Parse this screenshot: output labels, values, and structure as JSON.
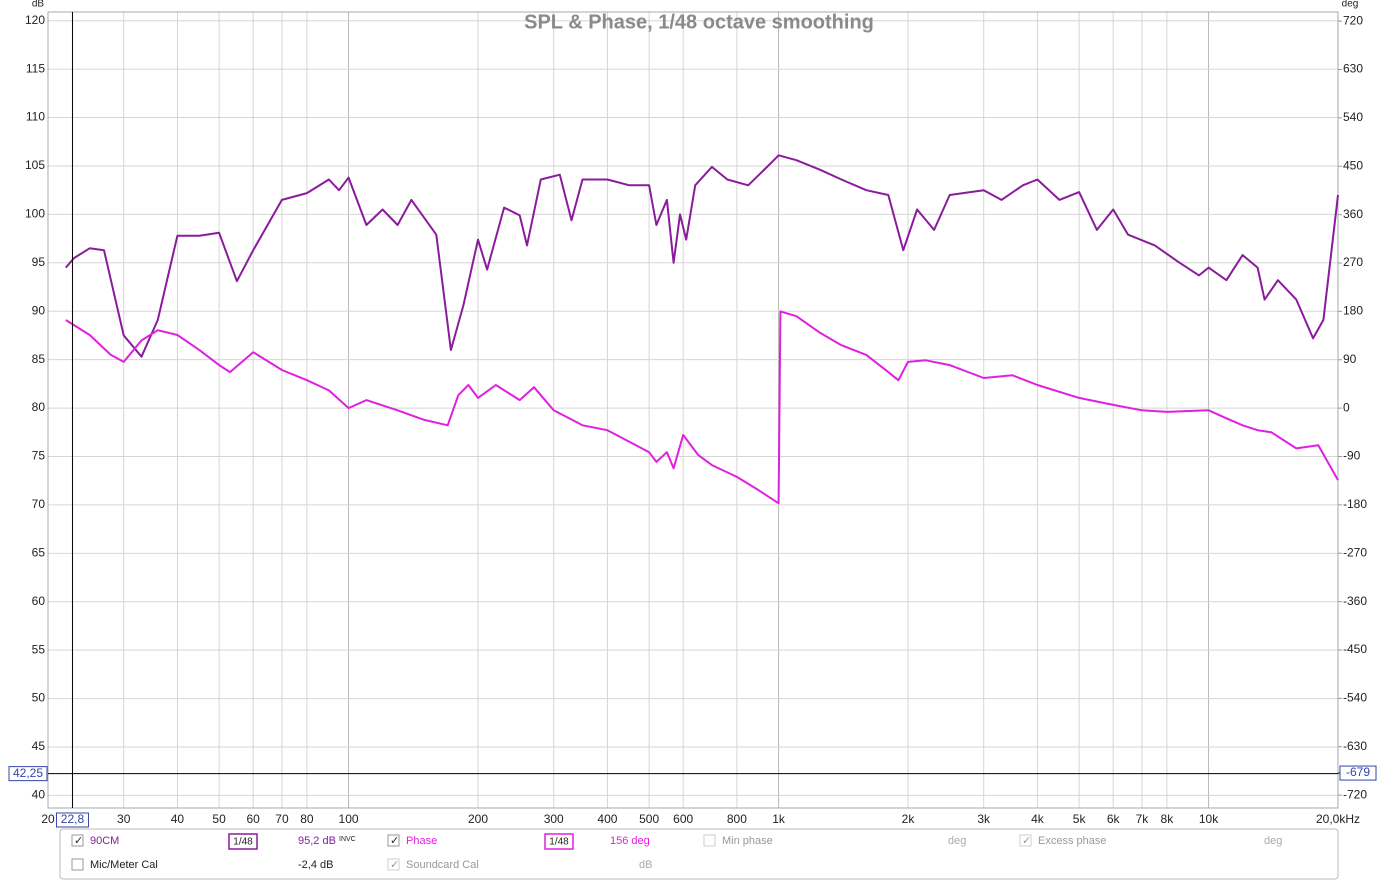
{
  "chart_data": {
    "type": "line",
    "title": "SPL & Phase, 1/48 octave smoothing",
    "y_label": "dB",
    "y2_label": "deg",
    "log_x": true,
    "grid": true,
    "xlim": [
      20,
      20000
    ],
    "xticks": [
      20,
      30,
      40,
      50,
      60,
      70,
      80,
      100,
      200,
      300,
      400,
      500,
      600,
      800,
      {
        "value": 1000,
        "label": "1k"
      },
      {
        "value": 2000,
        "label": "2k"
      },
      {
        "value": 3000,
        "label": "3k"
      },
      {
        "value": 4000,
        "label": "4k"
      },
      {
        "value": 5000,
        "label": "5k"
      },
      {
        "value": 6000,
        "label": "6k"
      },
      {
        "value": 7000,
        "label": "7k"
      },
      {
        "value": 8000,
        "label": "8k"
      },
      {
        "value": 10000,
        "label": "10k"
      },
      {
        "value": 20000,
        "label": "20,0kHz"
      }
    ],
    "ylim": [
      38.7,
      120.9
    ],
    "yticks": [
      40,
      45,
      50,
      55,
      60,
      65,
      70,
      75,
      80,
      85,
      90,
      95,
      100,
      105,
      110,
      115,
      120
    ],
    "y2lim": [
      -744,
      737
    ],
    "y2ticks": [
      -720,
      -630,
      -540,
      -450,
      -360,
      -270,
      -180,
      -90,
      0,
      90,
      180,
      270,
      360,
      450,
      540,
      630,
      720
    ],
    "cursor_x": {
      "value": 22.8,
      "label": "22,8"
    },
    "cursor_y": {
      "value": 42.25,
      "label": "42,25"
    },
    "cursor_y2": -679,
    "series": [
      {
        "name": "90CM",
        "color": "#8a1c9c",
        "smoothing": "1/48",
        "readout": "95,2 dB",
        "flag": "INVC",
        "x": [
          22,
          23,
          25,
          27,
          30,
          33,
          36,
          40,
          45,
          50,
          55,
          60,
          70,
          80,
          90,
          95,
          100,
          110,
          120,
          130,
          140,
          160,
          173,
          185,
          200,
          210,
          230,
          250,
          260,
          280,
          310,
          330,
          350,
          400,
          450,
          500,
          520,
          550,
          570,
          590,
          610,
          640,
          700,
          760,
          850,
          950,
          1000,
          1100,
          1250,
          1400,
          1600,
          1800,
          1950,
          2100,
          2300,
          2500,
          3000,
          3300,
          3700,
          4000,
          4500,
          5000,
          5500,
          6000,
          6500,
          7500,
          8500,
          9500,
          10000,
          11000,
          12000,
          13000,
          13500,
          14500,
          16000,
          17500,
          18500,
          20000
        ],
        "values": [
          94.5,
          95.5,
          96.5,
          96.3,
          87.5,
          85.3,
          89.1,
          97.8,
          97.8,
          98.1,
          93.1,
          96.3,
          101.5,
          102.2,
          103.6,
          102.5,
          103.8,
          98.9,
          100.5,
          98.9,
          101.5,
          97.9,
          86.0,
          90.6,
          97.4,
          94.3,
          100.7,
          99.9,
          96.8,
          103.6,
          104.1,
          99.4,
          103.6,
          103.6,
          103.0,
          103.0,
          98.9,
          101.5,
          95.0,
          100.0,
          97.4,
          103.0,
          104.9,
          103.6,
          103.0,
          105.1,
          106.1,
          105.6,
          104.6,
          103.6,
          102.5,
          102.0,
          96.3,
          100.5,
          98.4,
          102.0,
          102.5,
          101.5,
          103.0,
          103.6,
          101.5,
          102.3,
          98.4,
          100.5,
          97.9,
          96.8,
          95.1,
          93.7,
          94.5,
          93.2,
          95.8,
          94.5,
          91.2,
          93.2,
          91.2,
          87.2,
          89.1,
          102.0
        ]
      },
      {
        "name": "Phase",
        "color": "#e020e0",
        "axis": "y2",
        "smoothing": "1/48",
        "readout": "156 deg",
        "x": [
          22,
          25,
          28,
          30,
          33,
          36,
          40,
          45,
          50,
          53,
          60,
          70,
          80,
          90,
          100,
          110,
          130,
          150,
          170,
          180,
          190,
          200,
          220,
          250,
          270,
          300,
          350,
          400,
          500,
          520,
          550,
          570,
          600,
          650,
          700,
          800,
          900,
          1000,
          1010,
          1100,
          1250,
          1400,
          1600,
          1800,
          1900,
          2000,
          2200,
          2500,
          3000,
          3500,
          4000,
          5000,
          6000,
          7000,
          8000,
          10000,
          11000,
          12000,
          13000,
          14000,
          16000,
          18000,
          20000
        ],
        "values": [
          164,
          136,
          99,
          86,
          126,
          145,
          136,
          108,
          80,
          67,
          104,
          71,
          52,
          33,
          0,
          15,
          -4,
          -22,
          -32,
          24,
          43,
          19,
          43,
          15,
          39,
          -4,
          -32,
          -41,
          -82,
          -100,
          -82,
          -112,
          -50,
          -87,
          -106,
          -128,
          -153,
          -177,
          180,
          171,
          140,
          117,
          99,
          67,
          52,
          86,
          89,
          80,
          56,
          61,
          43,
          19,
          6,
          -4,
          -7,
          -4,
          -19,
          -32,
          -41,
          -45,
          -75,
          -69,
          -134
        ]
      }
    ]
  },
  "controls": {
    "min_phase": "Min phase",
    "min_phase_unit": "deg",
    "excess_phase": "Excess phase",
    "excess_phase_unit": "deg",
    "mic_cal": "Mic/Meter Cal",
    "mic_cal_value": "-2,4 dB",
    "soundcard_cal": "Soundcard Cal",
    "soundcard_cal_unit": "dB"
  }
}
